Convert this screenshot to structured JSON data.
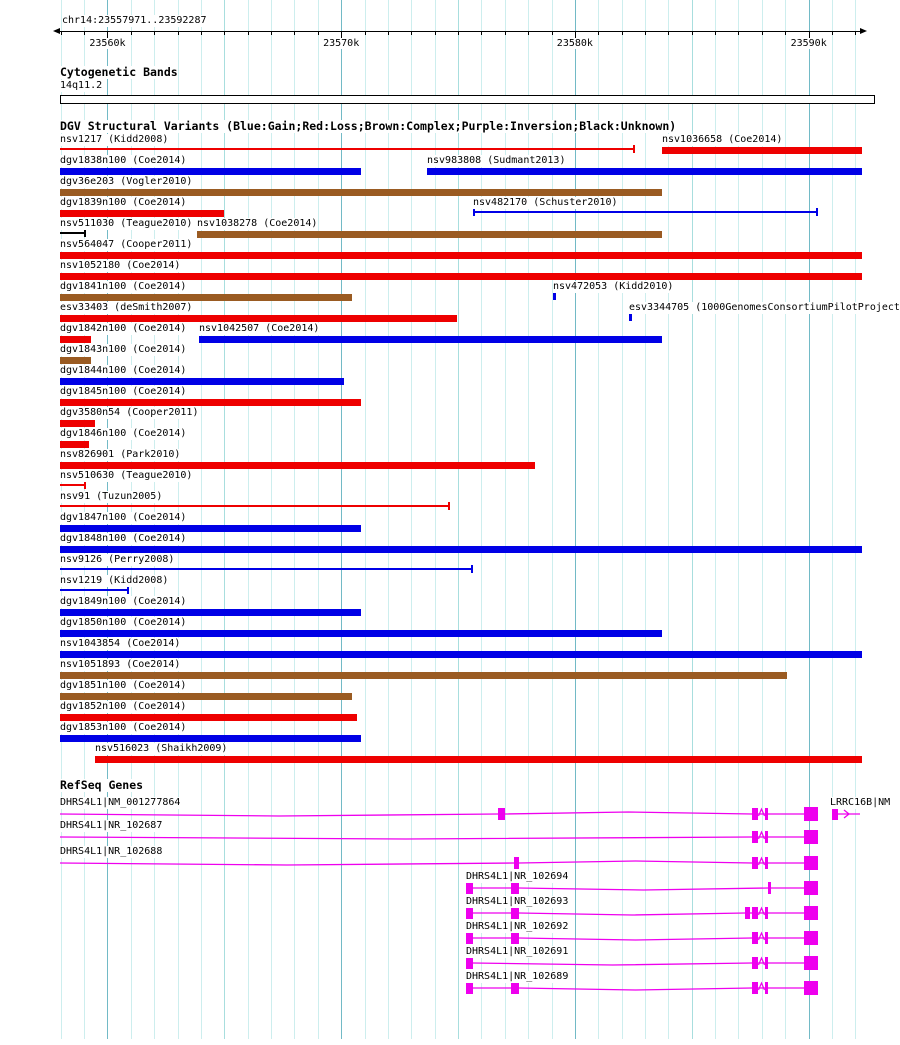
{
  "header": {
    "location": "chr14:23557971..23592287"
  },
  "cytobands": {
    "title": "Cytogenetic Bands",
    "band": "14q11.2"
  },
  "dgv": {
    "title": "DGV Structural Variants (Blue:Gain;Red:Loss;Brown:Complex;Purple:Inversion;Black:Unknown)"
  },
  "refseq": {
    "title": "RefSeq Genes"
  },
  "colors": {
    "gain": "#0000e6",
    "loss": "#ee0000",
    "complex": "#9a5b22",
    "inversion": "#800080",
    "unknown": "#000000",
    "gene": "#ee00ee",
    "grid_minor": "#cdeeee",
    "grid_mid": "#a8dede",
    "grid_major": "#72bac6",
    "ruler": "#000000"
  },
  "chart_data": {
    "type": "bar",
    "title": "DGV Structural Variants and RefSeq Genes, chr14:23557971..23592287",
    "axis": {
      "chromosome": "chr14",
      "view_start": 23557971,
      "view_end": 23592287,
      "grid_start": 23558000,
      "grid_end": 23592000,
      "grid_step": 1000,
      "major_step": 10000,
      "mid_step": 5000
    },
    "ruler_major_ticks": [
      {
        "bp": 23560000,
        "label": "23560k"
      },
      {
        "bp": 23570000,
        "label": "23570k"
      },
      {
        "bp": 23580000,
        "label": "23580k"
      },
      {
        "bp": 23590000,
        "label": "23590k"
      }
    ],
    "variants": [
      {
        "row": 0,
        "label": "nsv1217 (Kidd2008)",
        "type": "loss",
        "style": "line",
        "start": 23557971,
        "end": 23582532,
        "end_tick": true
      },
      {
        "row": 0,
        "label": "nsv1036658 (Coe2014)",
        "type": "loss",
        "style": "bar",
        "start": 23583731,
        "end": 23592287
      },
      {
        "row": 1,
        "label": "dgv1838n100 (Coe2014)",
        "type": "gain",
        "style": "bar",
        "start": 23557971,
        "end": 23570850
      },
      {
        "row": 1,
        "label": "nsv983808 (Sudmant2013)",
        "type": "gain",
        "style": "bar",
        "start": 23573674,
        "end": 23592287
      },
      {
        "row": 2,
        "label": "dgv36e203 (Vogler2010)",
        "type": "complex",
        "style": "bar",
        "start": 23557971,
        "end": 23583731
      },
      {
        "row": 3,
        "label": "dgv1839n100 (Coe2014)",
        "type": "loss",
        "style": "bar",
        "start": 23557971,
        "end": 23564988
      },
      {
        "row": 3,
        "label": "nsv482170 (Schuster2010)",
        "type": "gain",
        "style": "line",
        "start": 23575643,
        "end": 23590361,
        "start_tick": true,
        "end_tick": true
      },
      {
        "row": 4,
        "label": "nsv511030 (Teague2010)",
        "type": "unknown",
        "style": "line",
        "start": 23557971,
        "end": 23559041,
        "end_tick": true
      },
      {
        "row": 4,
        "label": "nsv1038278 (Coe2014)",
        "type": "complex",
        "style": "bar",
        "start": 23563833,
        "end": 23583731
      },
      {
        "row": 5,
        "label": "nsv564047 (Cooper2011)",
        "type": "loss",
        "style": "bar",
        "start": 23557971,
        "end": 23592287
      },
      {
        "row": 6,
        "label": "nsv1052180 (Coe2014)",
        "type": "loss",
        "style": "bar",
        "start": 23557971,
        "end": 23592287
      },
      {
        "row": 7,
        "label": "dgv1841n100 (Coe2014)",
        "type": "complex",
        "style": "bar",
        "start": 23557971,
        "end": 23570465
      },
      {
        "row": 7,
        "label": "nsv472053 (Kidd2010)",
        "type": "gain",
        "style": "point",
        "start": 23579066,
        "end": 23579066
      },
      {
        "row": 8,
        "label": "esv33403 (deSmith2007)",
        "type": "loss",
        "style": "bar",
        "start": 23557971,
        "end": 23574958
      },
      {
        "row": 8,
        "label": "esv3344705 (1000GenomesConsortiumPilotProject",
        "type": "gain",
        "style": "point",
        "start": 23582318,
        "end": 23582318
      },
      {
        "row": 9,
        "label": "dgv1842n100 (Coe2014)",
        "type": "loss",
        "style": "bar",
        "start": 23557971,
        "end": 23559297
      },
      {
        "row": 9,
        "label": "nsv1042507 (Coe2014)",
        "type": "gain",
        "style": "bar",
        "start": 23563918,
        "end": 23583731
      },
      {
        "row": 10,
        "label": "dgv1843n100 (Coe2014)",
        "type": "complex",
        "style": "bar",
        "start": 23557971,
        "end": 23559297
      },
      {
        "row": 11,
        "label": "dgv1844n100 (Coe2014)",
        "type": "gain",
        "style": "bar",
        "start": 23557971,
        "end": 23570123
      },
      {
        "row": 12,
        "label": "dgv1845n100 (Coe2014)",
        "type": "loss",
        "style": "bar",
        "start": 23557971,
        "end": 23570850
      },
      {
        "row": 13,
        "label": "dgv3580n54 (Cooper2011)",
        "type": "loss",
        "style": "bar",
        "start": 23557971,
        "end": 23559469
      },
      {
        "row": 14,
        "label": "dgv1846n100 (Coe2014)",
        "type": "loss",
        "style": "bar",
        "start": 23557971,
        "end": 23559212
      },
      {
        "row": 15,
        "label": "nsv826901 (Park2010)",
        "type": "loss",
        "style": "bar",
        "start": 23557971,
        "end": 23578296
      },
      {
        "row": 16,
        "label": "nsv510630 (Teague2010)",
        "type": "loss",
        "style": "line",
        "start": 23557971,
        "end": 23559041,
        "end_tick": true
      },
      {
        "row": 17,
        "label": "nsv91 (Tuzun2005)",
        "type": "loss",
        "style": "line",
        "start": 23557971,
        "end": 23574616,
        "end_tick": true
      },
      {
        "row": 18,
        "label": "dgv1847n100 (Coe2014)",
        "type": "gain",
        "style": "bar",
        "start": 23557971,
        "end": 23570850
      },
      {
        "row": 19,
        "label": "dgv1848n100 (Coe2014)",
        "type": "gain",
        "style": "bar",
        "start": 23557971,
        "end": 23592287
      },
      {
        "row": 20,
        "label": "nsv9126 (Perry2008)",
        "type": "gain",
        "style": "line",
        "start": 23557971,
        "end": 23575600,
        "end_tick": true
      },
      {
        "row": 21,
        "label": "nsv1219 (Kidd2008)",
        "type": "gain",
        "style": "line",
        "start": 23557971,
        "end": 23560881,
        "end_tick": true
      },
      {
        "row": 22,
        "label": "dgv1849n100 (Coe2014)",
        "type": "gain",
        "style": "bar",
        "start": 23557971,
        "end": 23570850
      },
      {
        "row": 23,
        "label": "dgv1850n100 (Coe2014)",
        "type": "gain",
        "style": "bar",
        "start": 23557971,
        "end": 23583731
      },
      {
        "row": 24,
        "label": "nsv1043854 (Coe2014)",
        "type": "gain",
        "style": "bar",
        "start": 23557971,
        "end": 23592287
      },
      {
        "row": 25,
        "label": "nsv1051893 (Coe2014)",
        "type": "complex",
        "style": "bar",
        "start": 23557971,
        "end": 23589078
      },
      {
        "row": 26,
        "label": "dgv1851n100 (Coe2014)",
        "type": "complex",
        "style": "bar",
        "start": 23557971,
        "end": 23570465
      },
      {
        "row": 27,
        "label": "dgv1852n100 (Coe2014)",
        "type": "loss",
        "style": "bar",
        "start": 23557971,
        "end": 23570679
      },
      {
        "row": 28,
        "label": "dgv1853n100 (Coe2014)",
        "type": "gain",
        "style": "bar",
        "start": 23557971,
        "end": 23570850
      },
      {
        "row": 29,
        "label": "nsv516023 (Shaikh2009)",
        "type": "loss",
        "style": "bar",
        "start": 23559469,
        "end": 23592287
      }
    ],
    "genes": [
      {
        "label": "DHRS4L1|NM_001277864",
        "label_y": 797,
        "start": 23557971,
        "end": 23590404,
        "exons": [
          [
            23576712,
            23577012
          ],
          [
            23587580,
            23587837
          ],
          [
            23588137,
            23588265
          ]
        ],
        "big_exon": [
          23589805,
          23590404
        ]
      },
      {
        "label": "DHRS4L1|NR_102687",
        "label_y": 820,
        "start": 23557971,
        "end": 23590404,
        "exons": [
          [
            23587580,
            23587837
          ],
          [
            23588137,
            23588265
          ]
        ],
        "big_exon": [
          23589805,
          23590404
        ]
      },
      {
        "label": "DHRS4L1|NR_102688",
        "label_y": 846,
        "start": 23557971,
        "end": 23590404,
        "exons": [
          [
            23577397,
            23577611
          ],
          [
            23587580,
            23587837
          ],
          [
            23588137,
            23588265
          ]
        ],
        "big_exon": [
          23589805,
          23590404
        ]
      },
      {
        "label": "DHRS4L1|NR_102694",
        "label_y": 871,
        "start": 23575343,
        "end": 23590404,
        "exons": [
          [
            23575343,
            23575643
          ],
          [
            23577269,
            23577611
          ],
          [
            23588265,
            23588393
          ]
        ],
        "big_exon": [
          23589805,
          23590404
        ]
      },
      {
        "label": "DHRS4L1|NR_102693",
        "label_y": 896,
        "start": 23575343,
        "end": 23590404,
        "exons": [
          [
            23575343,
            23575643
          ],
          [
            23577269,
            23577611
          ],
          [
            23587281,
            23587495
          ],
          [
            23587580,
            23587837
          ],
          [
            23588137,
            23588265
          ]
        ],
        "big_exon": [
          23589805,
          23590404
        ]
      },
      {
        "label": "DHRS4L1|NR_102692",
        "label_y": 921,
        "start": 23575343,
        "end": 23590404,
        "exons": [
          [
            23575343,
            23575643
          ],
          [
            23577269,
            23577611
          ],
          [
            23587580,
            23587837
          ],
          [
            23588137,
            23588265
          ]
        ],
        "big_exon": [
          23589805,
          23590404
        ]
      },
      {
        "label": "DHRS4L1|NR_102691",
        "label_y": 946,
        "start": 23575343,
        "end": 23590404,
        "exons": [
          [
            23575343,
            23575643
          ],
          [
            23587580,
            23587837
          ],
          [
            23588137,
            23588265
          ]
        ],
        "big_exon": [
          23589805,
          23590404
        ]
      },
      {
        "label": "DHRS4L1|NR_102689",
        "label_y": 971,
        "start": 23575343,
        "end": 23590404,
        "exons": [
          [
            23575343,
            23575643
          ],
          [
            23577269,
            23577611
          ],
          [
            23587580,
            23587837
          ],
          [
            23588137,
            23588265
          ]
        ],
        "big_exon": [
          23589805,
          23590404
        ]
      },
      {
        "label": "LRRC16B|NM",
        "label_y": 797,
        "label_bp": 23590918,
        "start": 23591003,
        "end": 23592201,
        "exons": [
          [
            23591003,
            23591260
          ]
        ],
        "big_exon": null,
        "arrow": true
      }
    ]
  }
}
